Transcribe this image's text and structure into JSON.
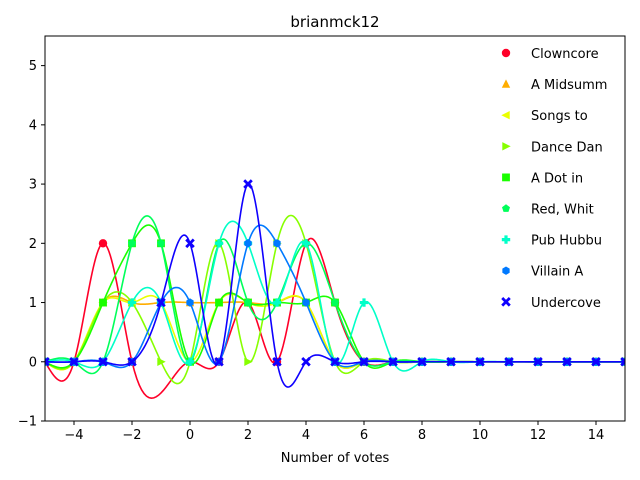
{
  "chart_data": {
    "type": "line",
    "title": "brianmck12",
    "xlabel": "Number of votes",
    "ylabel": "",
    "xlim": [
      -5,
      15
    ],
    "ylim": [
      -1,
      5.5
    ],
    "xticks": [
      -4,
      -2,
      0,
      2,
      4,
      6,
      8,
      10,
      12,
      14
    ],
    "yticks": [
      -1,
      0,
      1,
      2,
      3,
      4,
      5
    ],
    "grid": false,
    "legend_position": "top-right",
    "series": [
      {
        "name": "Clowncore",
        "color": "#ff0029",
        "marker": "circle",
        "x": [
          -5,
          -4,
          -3,
          -2,
          0,
          1,
          2,
          3,
          4,
          5,
          6,
          7,
          8,
          9,
          10,
          11,
          12,
          13,
          14,
          15
        ],
        "y": [
          0,
          0,
          2,
          0,
          0,
          0,
          1,
          0,
          2,
          1,
          0,
          0,
          0,
          0,
          0,
          0,
          0,
          0,
          0,
          0
        ]
      },
      {
        "name": "A Midsumm",
        "color": "#ffad00",
        "marker": "triangle-up",
        "x": [
          -5,
          -4,
          -3,
          -2,
          -1,
          0,
          1,
          2,
          3,
          4,
          5,
          6,
          7,
          8,
          9,
          10,
          11,
          12,
          13,
          14,
          15
        ],
        "y": [
          0,
          0,
          1,
          1,
          1,
          1,
          1,
          1,
          1,
          1,
          0,
          0,
          0,
          0,
          0,
          0,
          0,
          0,
          0,
          0,
          0
        ]
      },
      {
        "name": "Songs to",
        "color": "#eaff00",
        "marker": "triangle-left",
        "x": [
          -5,
          -4,
          -3,
          -2,
          -1,
          0,
          1,
          2,
          3,
          4,
          5,
          6,
          7,
          8,
          9,
          10,
          11,
          12,
          13,
          14,
          15
        ],
        "y": [
          0,
          0,
          1,
          1,
          1,
          0,
          1,
          1,
          1,
          1,
          0,
          0,
          0,
          0,
          0,
          0,
          0,
          0,
          0,
          0,
          0
        ]
      },
      {
        "name": "Dance Dan",
        "color": "#87ff00",
        "marker": "triangle-right",
        "x": [
          -5,
          -4,
          -3,
          -2,
          -1,
          0,
          1,
          2,
          3,
          4,
          5,
          6,
          7,
          8,
          9,
          10,
          11,
          12,
          13,
          14,
          15
        ],
        "y": [
          0,
          0,
          1,
          1,
          0,
          0,
          2,
          0,
          2,
          2,
          0,
          0,
          0,
          0,
          0,
          0,
          0,
          0,
          0,
          0,
          0
        ]
      },
      {
        "name": "A Dot in",
        "color": "#1aff00",
        "marker": "square",
        "x": [
          -5,
          -4,
          -3,
          -2,
          -1,
          0,
          1,
          2,
          3,
          4,
          5,
          6,
          7,
          8,
          9,
          10,
          11,
          12,
          13,
          14,
          15
        ],
        "y": [
          0,
          0,
          1,
          2,
          2,
          0,
          1,
          1,
          1,
          1,
          1,
          0,
          0,
          0,
          0,
          0,
          0,
          0,
          0,
          0,
          0
        ]
      },
      {
        "name": "Red, Whit",
        "color": "#00ff5a",
        "marker": "pentagon",
        "x": [
          -5,
          -4,
          -3,
          -2,
          -1,
          0,
          1,
          2,
          3,
          4,
          5,
          6,
          7,
          8,
          9,
          10,
          11,
          12,
          13,
          14,
          15
        ],
        "y": [
          0,
          0,
          0,
          2,
          2,
          0,
          2,
          1,
          1,
          2,
          1,
          0,
          0,
          0,
          0,
          0,
          0,
          0,
          0,
          0,
          0
        ]
      },
      {
        "name": "Pub Hubbu",
        "color": "#00ffc8",
        "marker": "plus",
        "x": [
          -5,
          -4,
          -3,
          -2,
          -1,
          0,
          1,
          2,
          3,
          4,
          5,
          6,
          7,
          8,
          9,
          10,
          11,
          12,
          13,
          14,
          15
        ],
        "y": [
          0,
          0,
          0,
          1,
          1,
          0,
          2,
          2,
          1,
          2,
          0,
          1,
          0,
          0,
          0,
          0,
          0,
          0,
          0,
          0,
          0
        ]
      },
      {
        "name": "Villain A",
        "color": "#0079ff",
        "marker": "hexagon",
        "x": [
          -5,
          -4,
          -3,
          -2,
          -1,
          0,
          1,
          2,
          3,
          4,
          5,
          6,
          7,
          8,
          9,
          10,
          11,
          12,
          13,
          14,
          15
        ],
        "y": [
          0,
          0,
          0,
          0,
          1,
          1,
          0,
          2,
          2,
          1,
          0,
          0,
          0,
          0,
          0,
          0,
          0,
          0,
          0,
          0,
          0
        ]
      },
      {
        "name": "Undercove",
        "color": "#0f00ff",
        "marker": "x",
        "x": [
          -5,
          -4,
          -3,
          -2,
          -1,
          0,
          1,
          2,
          3,
          4,
          5,
          6,
          7,
          8,
          9,
          10,
          11,
          12,
          13,
          14,
          15
        ],
        "y": [
          0,
          0,
          0,
          0,
          1,
          2,
          0,
          3,
          0,
          0,
          0,
          0,
          0,
          0,
          0,
          0,
          0,
          0,
          0,
          0,
          0
        ]
      }
    ]
  }
}
